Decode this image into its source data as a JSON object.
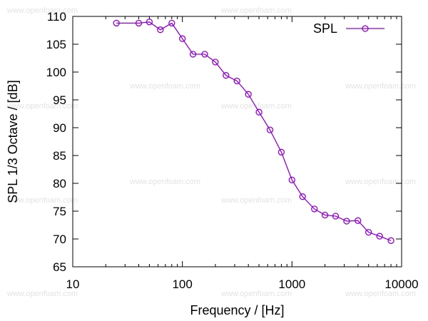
{
  "watermark": "www.openfoam.com",
  "chart_data": {
    "type": "line",
    "xlabel": "Frequency / [Hz]",
    "ylabel": "SPL 1/3 Octave / [dB]",
    "xscale": "log",
    "xlim": [
      10,
      10000
    ],
    "ylim": [
      65,
      110
    ],
    "xticks": [
      10,
      100,
      1000,
      10000
    ],
    "xtick_labels": [
      "10",
      "100",
      "1000",
      "10000"
    ],
    "yticks": [
      65,
      70,
      75,
      80,
      85,
      90,
      95,
      100,
      105,
      110
    ],
    "ytick_labels": [
      "65",
      "70",
      "75",
      "80",
      "85",
      "90",
      "95",
      "100",
      "105",
      "110"
    ],
    "grid": false,
    "legend_position": "top-right",
    "series": [
      {
        "name": "SPL",
        "color": "#9400d3",
        "marker": "circle",
        "x": [
          25,
          40,
          50,
          63,
          80,
          100,
          125,
          160,
          200,
          250,
          315,
          400,
          500,
          630,
          800,
          1000,
          1250,
          1600,
          2000,
          2500,
          3150,
          4000,
          5000,
          6300,
          8000
        ],
        "y": [
          108.8,
          108.8,
          109.0,
          107.6,
          108.8,
          106.0,
          103.2,
          103.2,
          101.8,
          99.4,
          98.4,
          96.0,
          92.8,
          89.6,
          85.6,
          80.6,
          77.6,
          75.4,
          74.3,
          74.1,
          73.2,
          73.3,
          71.2,
          70.5,
          69.7
        ]
      }
    ]
  }
}
